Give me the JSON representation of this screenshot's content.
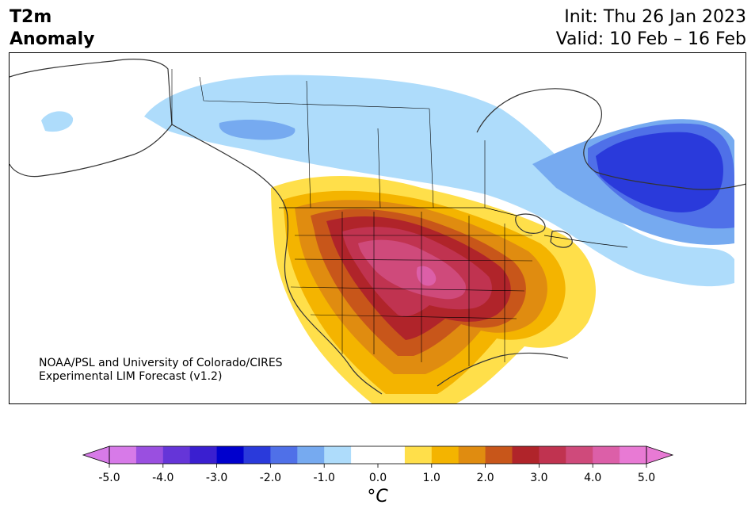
{
  "header": {
    "variable": "T2m",
    "subtitle": "Anomaly",
    "init": "Init: Thu 26 Jan 2023",
    "valid": "Valid: 10 Feb – 16 Feb"
  },
  "credit": {
    "line1": "NOAA/PSL and University of Colorado/CIRES",
    "line2": "Experimental LIM Forecast (v1.2)"
  },
  "colorbar": {
    "unit": "°C",
    "ticks": [
      "-5.0",
      "-4.0",
      "-3.0",
      "-2.0",
      "-1.0",
      "0.0",
      "1.0",
      "2.0",
      "3.0",
      "4.0",
      "5.0"
    ],
    "colors": [
      "#d77ae8",
      "#9a4fe0",
      "#6535d8",
      "#3a1fd0",
      "#0000cd",
      "#2a3adb",
      "#4f70e8",
      "#76aaf0",
      "#aedcfb",
      "#ffffff",
      "#ffffff",
      "#ffdf4a",
      "#f4b400",
      "#e08c10",
      "#c8561a",
      "#b0242a",
      "#c03350",
      "#cf4a7b",
      "#dc5fa8",
      "#e87ad4"
    ],
    "under_color": "#d77ae8",
    "over_color": "#e87ad4"
  },
  "colors": {
    "land_outline": "#333333",
    "border": "#000000"
  }
}
